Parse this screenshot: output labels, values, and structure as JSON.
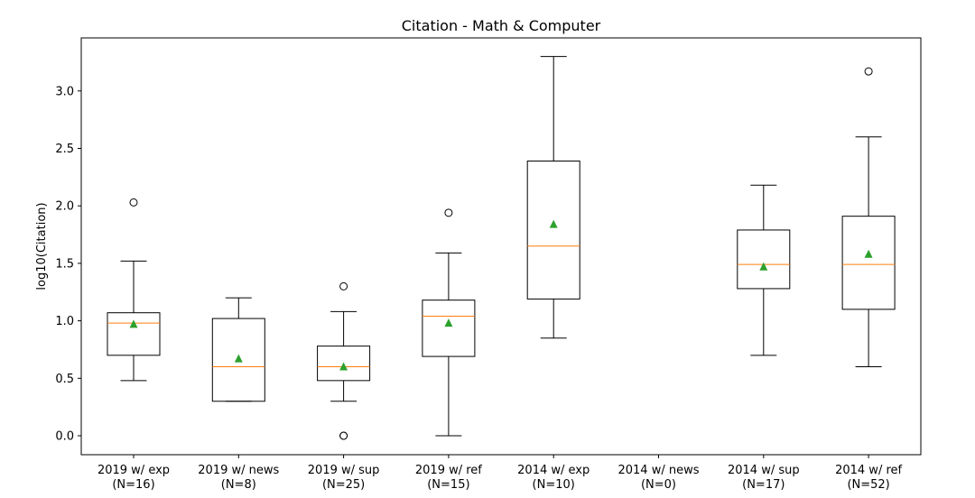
{
  "chart_data": {
    "type": "box",
    "title": "Citation - Math & Computer",
    "xlabel": "",
    "ylabel": "log10(Citation)",
    "ylim": [
      -0.17,
      3.45
    ],
    "yticks": [
      "0.0",
      "0.5",
      "1.0",
      "1.5",
      "2.0",
      "2.5",
      "3.0"
    ],
    "grid": false,
    "categories": [
      "2019 w/ exp\n(N=16)",
      "2019 w/ news\n(N=8)",
      "2019 w/ sup\n(N=25)",
      "2019 w/ ref\n(N=15)",
      "2014 w/ exp\n(N=10)",
      "2014 w/ news\n(N=0)",
      "2014 w/ sup\n(N=17)",
      "2014 w/ ref\n(N=52)"
    ],
    "boxes": [
      {
        "whislo": 0.48,
        "q1": 0.7,
        "med": 0.98,
        "q3": 1.07,
        "whishi": 1.52,
        "mean": 0.97,
        "fliers": [
          2.03
        ]
      },
      {
        "whislo": 0.3,
        "q1": 0.3,
        "med": 0.6,
        "q3": 1.02,
        "whishi": 1.2,
        "mean": 0.67,
        "fliers": []
      },
      {
        "whislo": 0.3,
        "q1": 0.48,
        "med": 0.6,
        "q3": 0.78,
        "whishi": 1.08,
        "mean": 0.6,
        "fliers": [
          1.3,
          0.0,
          0.0
        ]
      },
      {
        "whislo": 0.0,
        "q1": 0.69,
        "med": 1.04,
        "q3": 1.18,
        "whishi": 1.59,
        "mean": 0.98,
        "fliers": [
          1.94
        ]
      },
      {
        "whislo": 0.85,
        "q1": 1.19,
        "med": 1.65,
        "q3": 2.39,
        "whishi": 3.3,
        "mean": 1.84,
        "fliers": []
      },
      null,
      {
        "whislo": 0.7,
        "q1": 1.28,
        "med": 1.49,
        "q3": 1.79,
        "whishi": 2.18,
        "mean": 1.47,
        "fliers": []
      },
      {
        "whislo": 0.6,
        "q1": 1.1,
        "med": 1.49,
        "q3": 1.91,
        "whishi": 2.6,
        "mean": 1.58,
        "fliers": [
          3.17
        ]
      }
    ],
    "colors": {
      "box": "#000000",
      "median": "#ff7f0e",
      "mean": "#2ca02c",
      "flier": "#000000"
    }
  }
}
